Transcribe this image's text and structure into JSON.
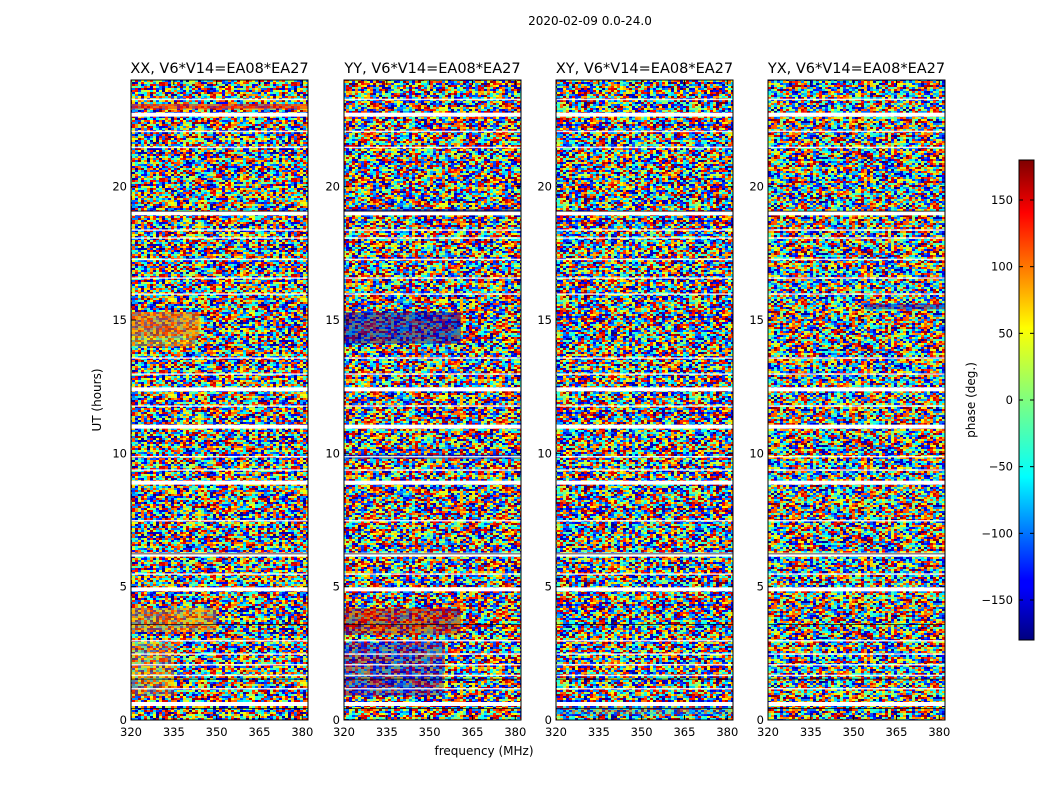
{
  "chart_data": {
    "type": "heatmap",
    "suptitle": "2020-02-09 0.0-24.0",
    "xlabel": "frequency (MHz)",
    "ylabel": "UT (hours)",
    "xlim": [
      320,
      382
    ],
    "ylim": [
      0,
      24
    ],
    "xticks": [
      "320",
      "335",
      "350",
      "365",
      "380"
    ],
    "yticks": [
      "0",
      "5",
      "10",
      "15",
      "20"
    ],
    "panels": [
      {
        "title": "XX, V6*V14=EA08*EA27",
        "correlation": "XX"
      },
      {
        "title": "YY, V6*V14=EA08*EA27",
        "correlation": "YY"
      },
      {
        "title": "XY, V6*V14=EA08*EA27",
        "correlation": "XY"
      },
      {
        "title": "YX, V6*V14=EA08*EA27",
        "correlation": "YX"
      }
    ],
    "colorbar": {
      "label": "phase (deg.)",
      "range": [
        -180,
        180
      ],
      "ticks": [
        "150",
        "100",
        "50",
        "0",
        "−50",
        "−100",
        "−150"
      ],
      "colormap": "jet"
    },
    "flagged_bands_hours": [
      0.6,
      4.9,
      6.2,
      8.9,
      11.0,
      12.4,
      19.0,
      22.7
    ]
  },
  "colors": {
    "frame": "#000000",
    "background": "#ffffff",
    "flagged": "#ffffff"
  }
}
